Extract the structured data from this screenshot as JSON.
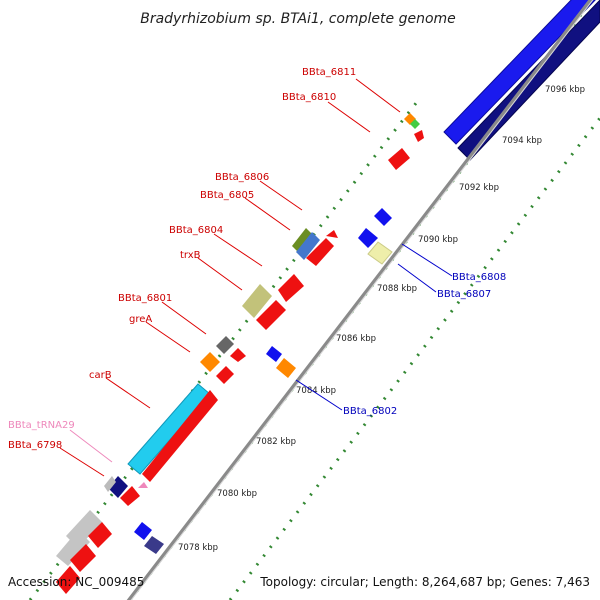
{
  "title": "Bradyrhizobium sp. BTAi1, complete genome",
  "footer": {
    "accession": "Accession: NC_009485",
    "summary": "Topology: circular; Length: 8,264,687 bp; Genes: 7,463"
  },
  "ruler_labels": [
    "7078 kbp",
    "7080 kbp",
    "7082 kbp",
    "7084 kbp",
    "7086 kbp",
    "7088 kbp",
    "7090 kbp",
    "7092 kbp",
    "7094 kbp",
    "7096 kbp"
  ],
  "forward_gene_labels": [
    "BBta_6811",
    "BBta_6810",
    "BBta_6806",
    "BBta_6805",
    "BBta_6804",
    "trxB",
    "BBta_6801",
    "greA",
    "carB",
    "BBta_tRNA29",
    "BBta_6798"
  ],
  "reverse_gene_labels": [
    "BBta_6808",
    "BBta_6807",
    "BBta_6802"
  ],
  "colors": {
    "forward_label": "#cc0000",
    "reverse_label": "#0000bb",
    "trna_label": "#ee88bb",
    "forward_gene": "#ee1111",
    "reverse_gene": "#1111ee",
    "ruler_dots": "#338833",
    "backbone": "#999999"
  }
}
